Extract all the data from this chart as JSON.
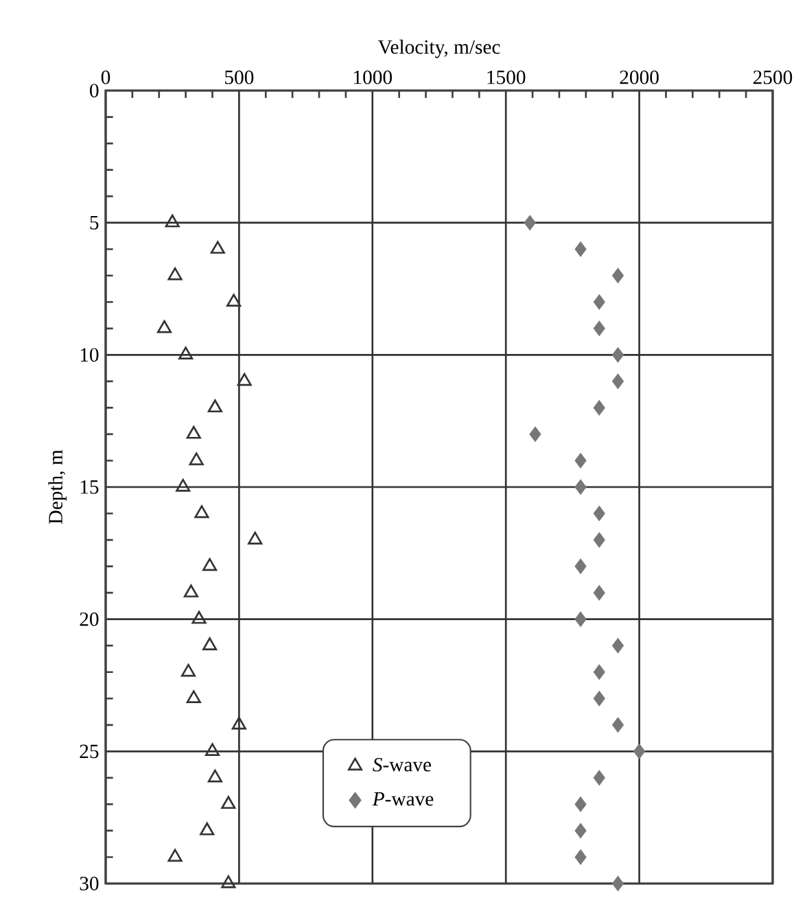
{
  "chart_data": {
    "type": "scatter",
    "xlabel": "Velocity, m/sec",
    "ylabel": "Depth, m",
    "xlim": [
      0,
      2500
    ],
    "xticks": [
      0,
      500,
      1000,
      1500,
      2000,
      2500
    ],
    "ylim": [
      30,
      0
    ],
    "yticks": [
      0,
      5,
      10,
      15,
      20,
      25,
      30
    ],
    "grid": true,
    "legend": "bottom",
    "series": [
      {
        "name": "*S*-wave",
        "color": "#333333",
        "marker": "triangle",
        "x": [
          250,
          420,
          260,
          480,
          220,
          300,
          520,
          410,
          330,
          340,
          290,
          360,
          560,
          390,
          320,
          350,
          390,
          310,
          330,
          500,
          400,
          410,
          460,
          380,
          260,
          460
        ],
        "values": [
          5,
          6,
          7,
          8,
          9,
          10,
          11,
          12,
          13,
          14,
          15,
          16,
          17,
          18,
          19,
          20,
          21,
          22,
          23,
          24,
          25,
          26,
          27,
          28,
          29,
          30
        ]
      },
      {
        "name": "*P*-wave",
        "color": "#777777",
        "marker": "diamond",
        "x": [
          1590,
          1780,
          1920,
          1850,
          1850,
          1920,
          1920,
          1850,
          1610,
          1780,
          1780,
          1850,
          1850,
          1780,
          1850,
          1780,
          1920,
          1850,
          1850,
          1920,
          2000,
          1850,
          1780,
          1780,
          1780,
          1920
        ],
        "values": [
          5,
          6,
          7,
          8,
          9,
          10,
          11,
          12,
          13,
          14,
          15,
          16,
          17,
          18,
          19,
          20,
          21,
          22,
          23,
          24,
          25,
          26,
          27,
          28,
          29,
          30
        ]
      }
    ]
  }
}
